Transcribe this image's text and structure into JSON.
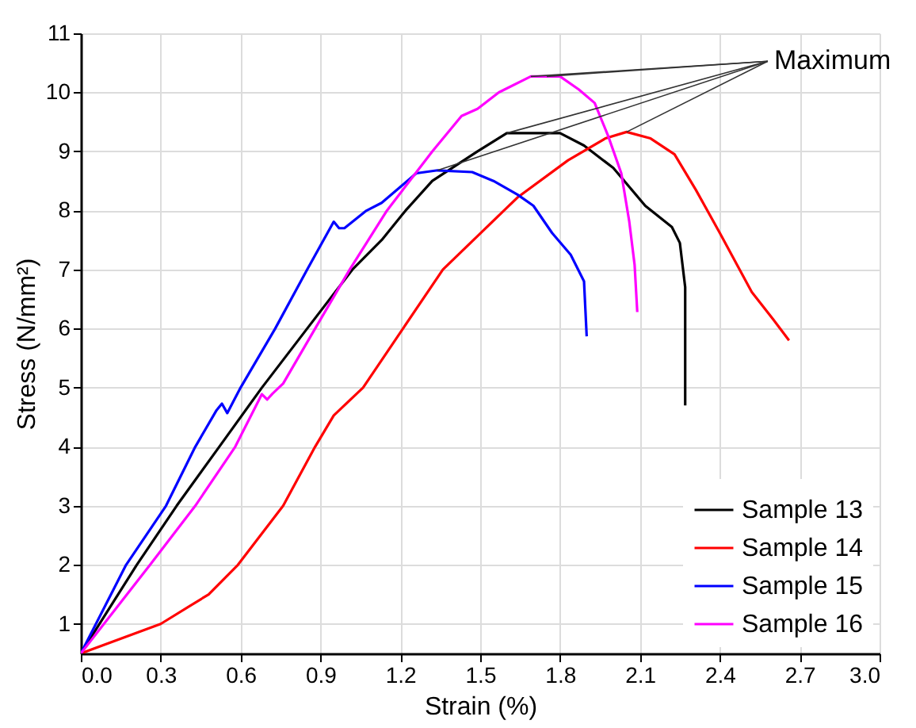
{
  "chart_data": {
    "type": "line",
    "xlabel": "Strain (%)",
    "ylabel": "Stress (N/mm²)",
    "xlim": [
      0,
      3.0
    ],
    "ylim": [
      0.5,
      11
    ],
    "xticks": [
      {
        "value": 0,
        "label": "0.0"
      },
      {
        "value": 0.3,
        "label": "0.3"
      },
      {
        "value": 0.6,
        "label": "0.6"
      },
      {
        "value": 0.9,
        "label": "0.9"
      },
      {
        "value": 1.2,
        "label": "1.2"
      },
      {
        "value": 1.5,
        "label": "1.5"
      },
      {
        "value": 1.8,
        "label": "1.8"
      },
      {
        "value": 2.1,
        "label": "2.1"
      },
      {
        "value": 2.4,
        "label": "2.4"
      },
      {
        "value": 2.7,
        "label": "2.7"
      },
      {
        "value": 3.0,
        "label": "3.0"
      }
    ],
    "yticks": [
      1,
      2,
      3,
      4,
      5,
      6,
      7,
      8,
      9,
      10,
      11
    ],
    "grid": true,
    "legend": "bottom right",
    "line_style": "solid",
    "annotations": [
      {
        "text": "Maximum",
        "x": 1.75,
        "y": 10.27
      }
    ],
    "series": [
      {
        "name": "Sample 13",
        "color": "#000000",
        "x": [
          0,
          0.21,
          0.36,
          0.52,
          0.68,
          0.85,
          1.02,
          1.13,
          1.22,
          1.32,
          1.49,
          1.6,
          1.8,
          1.89,
          2.0,
          2.12,
          2.22,
          2.25,
          2.27,
          2.27
        ],
        "values": [
          0.5,
          2,
          3,
          4,
          5,
          6,
          7,
          7.5,
          8,
          8.5,
          9,
          9.31,
          9.31,
          9.1,
          8.72,
          8.08,
          7.72,
          7.45,
          6.7,
          4.7
        ]
      },
      {
        "name": "Sample 14",
        "color": "#ff0000",
        "x": [
          0,
          0.3,
          0.48,
          0.59,
          0.76,
          0.88,
          0.95,
          1.06,
          1.21,
          1.36,
          1.64,
          1.83,
          1.97,
          2.05,
          2.14,
          2.23,
          2.31,
          2.4,
          2.52,
          2.6,
          2.66
        ],
        "values": [
          0.5,
          1,
          1.5,
          2,
          3,
          4,
          4.53,
          5,
          6,
          7,
          8.22,
          8.85,
          9.22,
          9.33,
          9.22,
          8.95,
          8.35,
          7.62,
          6.62,
          6.16,
          5.8
        ]
      },
      {
        "name": "Sample 15",
        "color": "#0000ff",
        "x": [
          0,
          0.17,
          0.32,
          0.43,
          0.51,
          0.53,
          0.55,
          0.6,
          0.73,
          0.85,
          0.95,
          0.97,
          0.99,
          1.07,
          1.13,
          1.26,
          1.34,
          1.47,
          1.55,
          1.64,
          1.7,
          1.77,
          1.84,
          1.89,
          1.9
        ],
        "values": [
          0.5,
          2,
          3,
          4,
          4.62,
          4.73,
          4.57,
          5,
          6,
          7,
          7.81,
          7.7,
          7.7,
          7.99,
          8.13,
          8.63,
          8.68,
          8.65,
          8.5,
          8.27,
          8.08,
          7.62,
          7.25,
          6.8,
          5.87
        ]
      },
      {
        "name": "Sample 16",
        "color": "#ff00ff",
        "x": [
          0,
          0.26,
          0.43,
          0.58,
          0.68,
          0.7,
          0.72,
          0.76,
          0.88,
          1.01,
          1.15,
          1.32,
          1.43,
          1.49,
          1.57,
          1.69,
          1.8,
          1.87,
          1.93,
          1.98,
          2.03,
          2.06,
          2.08,
          2.09
        ],
        "values": [
          0.5,
          2,
          3,
          4,
          4.89,
          4.8,
          4.9,
          5.07,
          6,
          7,
          8,
          9,
          9.6,
          9.72,
          10.0,
          10.27,
          10.27,
          10.05,
          9.82,
          9.27,
          8.63,
          7.81,
          7.08,
          6.28
        ]
      }
    ]
  }
}
